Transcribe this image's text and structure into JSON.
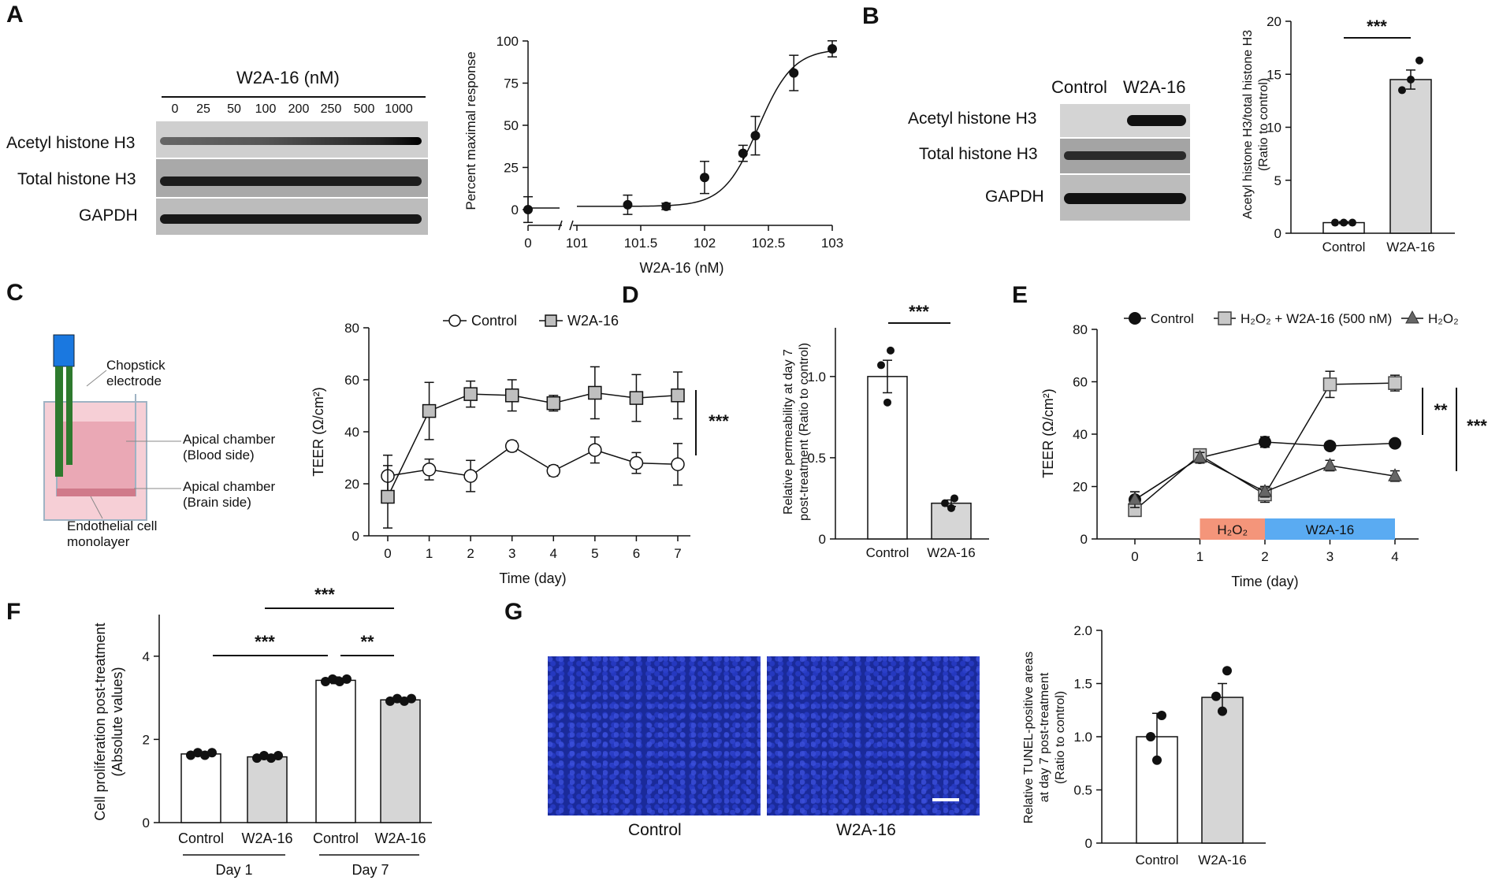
{
  "letters": [
    "A",
    "B",
    "C",
    "D",
    "E",
    "F",
    "G"
  ],
  "A": {
    "blot_title": "W2A-16 (nM)",
    "lanes": [
      "0",
      "25",
      "50",
      "100",
      "200",
      "250",
      "500",
      "1000"
    ],
    "rows": [
      "Acetyl histone H3",
      "Total histone H3",
      "GAPDH"
    ]
  },
  "chart_data": [
    {
      "id": "A-dose-response",
      "type": "scatter",
      "title": "",
      "xlabel": "W2A-16 (nM)",
      "ylabel": "Percent maximal response",
      "x_scale": "log10 with axis break",
      "ylim": [
        0,
        100
      ],
      "x_ticks": [
        "0",
        "10^1",
        "10^1.5",
        "10^2",
        "10^2.5",
        "10^3"
      ],
      "y_ticks": [
        "0",
        "25",
        "50",
        "75",
        "100"
      ],
      "series": [
        {
          "x": [
            0,
            25,
            50,
            100,
            200,
            250,
            500,
            1000
          ],
          "y": [
            0,
            3,
            2,
            20,
            35,
            46,
            85,
            100
          ],
          "err": [
            8,
            6,
            2,
            10,
            5,
            12,
            11,
            5
          ]
        }
      ],
      "fit": "sigmoid"
    },
    {
      "id": "B-bar",
      "type": "bar",
      "categories": [
        "Control",
        "W2A-16"
      ],
      "values": [
        1,
        14.5
      ],
      "err": [
        0.1,
        0.9
      ],
      "points": [
        [
          1,
          1,
          1
        ],
        [
          13.5,
          14.5,
          16.3
        ]
      ],
      "ylabel": "Acetyl histone H3/total histone H3 (Ratio to control)",
      "ylim": [
        0,
        20
      ],
      "y_ticks": [
        "0",
        "5",
        "10",
        "15",
        "20"
      ],
      "significance": "***"
    },
    {
      "id": "C-line",
      "type": "line",
      "x": [
        0,
        1,
        2,
        3,
        4,
        5,
        6,
        7
      ],
      "series": [
        {
          "name": "Control",
          "values": [
            23,
            25.5,
            23,
            34.5,
            25,
            33,
            28,
            27.5
          ],
          "err": [
            8,
            4,
            6,
            2,
            2,
            5,
            4,
            8
          ]
        },
        {
          "name": "W2A-16",
          "values": [
            15,
            48,
            54.5,
            54,
            51,
            55,
            53,
            54
          ],
          "err": [
            12,
            11,
            5,
            6,
            3,
            10,
            9,
            9
          ]
        }
      ],
      "xlabel": "Time (day)",
      "ylabel": "TEER (Ω/cm²)",
      "ylim": [
        0,
        80
      ],
      "y_ticks": [
        "0",
        "20",
        "40",
        "60",
        "80"
      ],
      "significance": "***"
    },
    {
      "id": "D-bar",
      "type": "bar",
      "categories": [
        "Control",
        "W2A-16"
      ],
      "values": [
        1.0,
        0.22
      ],
      "err": [
        0.1,
        0.02
      ],
      "points": [
        [
          0.84,
          1.07,
          1.16
        ],
        [
          0.19,
          0.22,
          0.25
        ]
      ],
      "ylabel": "Relative permeability at day 7 post-treatment (Ratio to control)",
      "ylim": [
        0,
        1.3
      ],
      "y_ticks": [
        "0",
        "0.5",
        "1.0"
      ],
      "significance": "***"
    },
    {
      "id": "E-line",
      "type": "line",
      "x": [
        0,
        1,
        2,
        3,
        4
      ],
      "series": [
        {
          "name": "Control",
          "values": [
            15,
            31,
            37,
            35.5,
            36.5
          ],
          "err": [
            3,
            2,
            2,
            1,
            1
          ]
        },
        {
          "name": "H₂O₂ + W2A-16 (500 nM)",
          "values": [
            11,
            32,
            17,
            59,
            59.5
          ],
          "err": [
            2,
            2,
            3,
            5,
            3
          ]
        },
        {
          "name": "H₂O₂",
          "values": [
            15,
            31,
            18,
            28,
            24
          ],
          "err": [
            3,
            2,
            2,
            2,
            2
          ]
        }
      ],
      "xlabel": "Time (day)",
      "ylabel": "TEER (Ω/cm²)",
      "ylim": [
        0,
        80
      ],
      "y_ticks": [
        "0",
        "20",
        "40",
        "60",
        "80"
      ],
      "significance": [
        "**",
        "***"
      ],
      "bands": [
        {
          "label": "H₂O₂",
          "from": 1,
          "to": 2,
          "color": "#f4957a"
        },
        {
          "label": "W2A-16",
          "from": 2,
          "to": 4,
          "color": "#5aabf2"
        }
      ]
    },
    {
      "id": "F-bar",
      "type": "bar",
      "categories": [
        "Control",
        "W2A-16",
        "Control",
        "W2A-16"
      ],
      "groups": [
        "Day 1",
        "Day 7"
      ],
      "values": [
        1.65,
        1.58,
        3.42,
        2.95
      ],
      "err": [
        0.03,
        0.03,
        0.08,
        0.05
      ],
      "ylabel": "Cell proliferation post-treatment (Absolute values)",
      "ylim": [
        0,
        5
      ],
      "y_ticks": [
        "0",
        "2",
        "4"
      ],
      "significance": [
        "***",
        "***",
        "**"
      ]
    },
    {
      "id": "G-bar",
      "type": "bar",
      "categories": [
        "Control",
        "W2A-16"
      ],
      "values": [
        1.0,
        1.37
      ],
      "err": [
        0.22,
        0.13
      ],
      "points": [
        [
          0.78,
          1.0,
          1.2
        ],
        [
          1.24,
          1.38,
          1.62
        ]
      ],
      "ylabel": "Relative TUNEL-positive areas at day 7 post-treatment (Ratio to control)",
      "ylim": [
        0,
        2.0
      ],
      "y_ticks": [
        "0",
        "0.5",
        "1.0",
        "1.5",
        "2.0"
      ]
    }
  ],
  "B": {
    "lanes": [
      "Control",
      "W2A-16"
    ],
    "rows": [
      "Acetyl histone H3",
      "Total histone H3",
      "GAPDH"
    ]
  },
  "C_diagram": {
    "labels": [
      "Chopstick electrode",
      "Apical chamber (Blood side)",
      "Apical chamber (Brain side)",
      "Endothelial cell monolayer"
    ]
  },
  "G_images": [
    "Control",
    "W2A-16"
  ],
  "colors": {
    "grey_bar": "#d6d6d6",
    "h2o2_band": "#f4957a",
    "w2a_band": "#5aabf2",
    "micro_bg": "#1a2a9a"
  }
}
